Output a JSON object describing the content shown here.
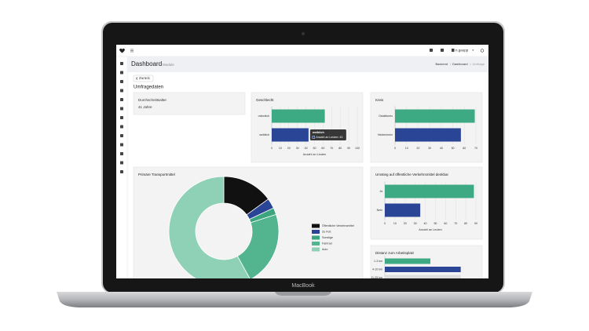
{
  "topbar": {
    "user": "n.gaupp"
  },
  "header": {
    "title": "Dashboard",
    "subtitle": "Module",
    "breadcrumb": [
      "Backend",
      "Dashboard",
      "Umfrage"
    ]
  },
  "back_button": "Zurück",
  "section_title": "Umfragedaten",
  "stat": {
    "title": "Durchschnittsalter",
    "value": "41 Jahre"
  },
  "device_label": "MacBook",
  "chart_data": [
    {
      "type": "barh",
      "title": "Geschlecht",
      "categories": [
        "männlich",
        "weiblich"
      ],
      "values": [
        62,
        43
      ],
      "colors": [
        "#3daa84",
        "#2b4596"
      ],
      "xlim": [
        0,
        100
      ],
      "xticks": [
        0,
        10,
        20,
        30,
        40,
        50,
        60,
        70,
        80,
        90,
        100
      ],
      "xlabel": "Anzahl an Leuten",
      "tooltip": {
        "title": "weiblich",
        "label": "Anzahl an Leuten: 43"
      }
    },
    {
      "type": "barh",
      "title": "Kreis",
      "categories": [
        "Ostalbkreis",
        "Heidenheim"
      ],
      "values": [
        69,
        57
      ],
      "colors": [
        "#3daa84",
        "#2b4596"
      ],
      "xlim": [
        0,
        70
      ],
      "xticks": [
        0,
        10,
        20,
        30,
        40,
        50,
        60,
        70
      ]
    },
    {
      "type": "pie",
      "title": "Primäre Transportmittel",
      "categories": [
        "Öffentliche Verkehrsmittel",
        "Zu Fuß",
        "Sonstige",
        "Fahrrad",
        "Auto"
      ],
      "values": [
        15,
        3,
        2,
        22,
        58
      ],
      "colors": [
        "#111111",
        "#2b4596",
        "#3aa57e",
        "#52b58f",
        "#8fd1b7"
      ]
    },
    {
      "type": "barh",
      "title": "Umstieg auf öffentliche Verkehrsmittel denkbar",
      "categories": [
        "Ja",
        "Nein"
      ],
      "values": [
        88,
        35
      ],
      "colors": [
        "#3daa84",
        "#2b4596"
      ],
      "xlim": [
        0,
        90
      ],
      "xticks": [
        0,
        10,
        20,
        30,
        40,
        50,
        60,
        70,
        80,
        90
      ],
      "xlabel": "Anzahl an Leuten"
    },
    {
      "type": "barh",
      "title": "Distanz zum Arbeitsplatz",
      "categories": [
        "1-3 km",
        "4-10 km",
        "11-25 km"
      ],
      "values": [
        30,
        50,
        50
      ],
      "colors": [
        "#3daa84",
        "#2b4596",
        "#dddddd"
      ],
      "xlim": [
        0,
        60
      ]
    }
  ]
}
